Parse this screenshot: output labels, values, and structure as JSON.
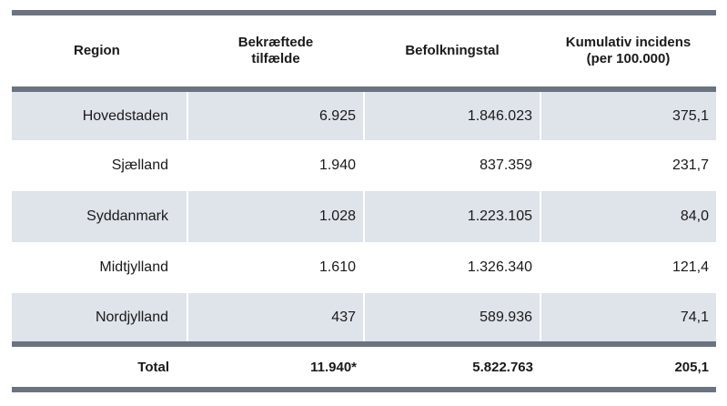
{
  "table": {
    "headers": {
      "region": "Region",
      "confirmed_line1": "Bekræftede",
      "confirmed_line2": "tilfælde",
      "population": "Befolkningstal",
      "incidence_line1": "Kumulativ incidens",
      "incidence_line2": "(per 100.000)"
    },
    "rows": [
      {
        "region": "Hovedstaden",
        "confirmed": "6.925",
        "population": "1.846.023",
        "incidence": "375,1"
      },
      {
        "region": "Sjælland",
        "confirmed": "1.940",
        "population": "837.359",
        "incidence": "231,7"
      },
      {
        "region": "Syddanmark",
        "confirmed": "1.028",
        "population": "1.223.105",
        "incidence": "84,0"
      },
      {
        "region": "Midtjylland",
        "confirmed": "1.610",
        "population": "1.326.340",
        "incidence": "121,4"
      },
      {
        "region": "Nordjylland",
        "confirmed": "437",
        "population": "589.936",
        "incidence": "74,1"
      }
    ],
    "total": {
      "region": "Total",
      "confirmed": "11.940*",
      "population": "5.822.763",
      "incidence": "205,1"
    }
  }
}
